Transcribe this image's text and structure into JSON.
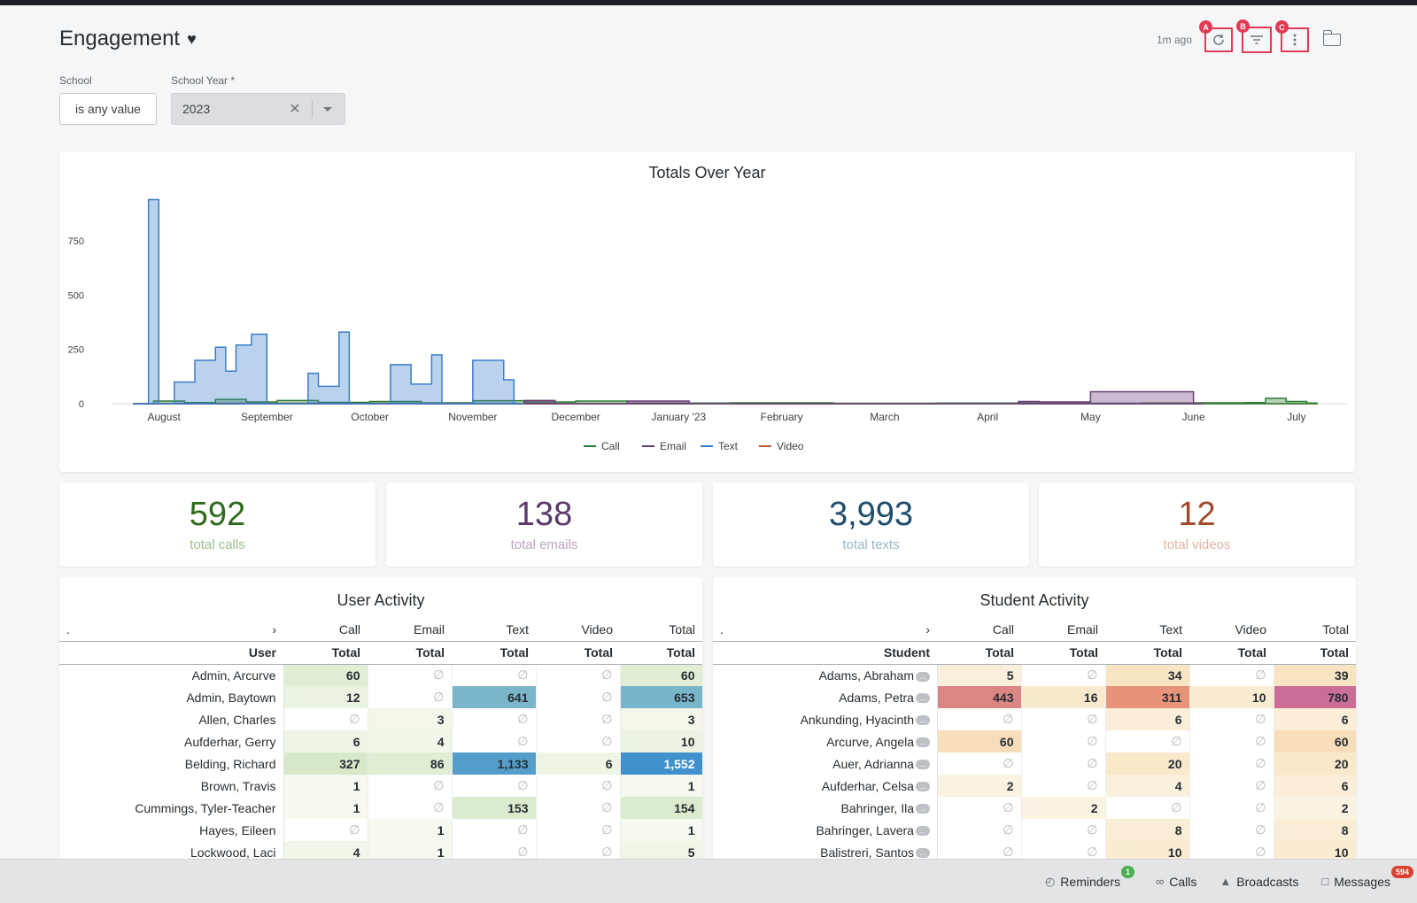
{
  "page": {
    "title": "Engagement",
    "updated": "1m ago",
    "marker_labels": [
      "A",
      "B",
      "C"
    ]
  },
  "filters": {
    "school_label": "School",
    "school_value": "is any value",
    "year_label": "School Year *",
    "year_value": "2023"
  },
  "chart_data": {
    "type": "area",
    "title": "Totals Over Year",
    "x_ticks": [
      "August",
      "September",
      "October",
      "November",
      "December",
      "January '23",
      "February",
      "March",
      "April",
      "May",
      "June",
      "July"
    ],
    "y_ticks": [
      "0",
      "250",
      "500",
      "750"
    ],
    "ylim": [
      0,
      950
    ],
    "legend": "bottom",
    "series": [
      {
        "name": "Call",
        "color": "#2e7d32",
        "values": [
          [
            0.2,
            0
          ],
          [
            0.4,
            12
          ],
          [
            0.7,
            5
          ],
          [
            1.0,
            20
          ],
          [
            1.3,
            8
          ],
          [
            1.6,
            15
          ],
          [
            2.0,
            6
          ],
          [
            2.5,
            10
          ],
          [
            3.0,
            4
          ],
          [
            3.5,
            14
          ],
          [
            4.0,
            8
          ],
          [
            4.5,
            12
          ],
          [
            5.0,
            3
          ],
          [
            6.0,
            4
          ],
          [
            7.0,
            2
          ],
          [
            8.0,
            3
          ],
          [
            9.0,
            2
          ],
          [
            10.0,
            3
          ],
          [
            10.5,
            4
          ],
          [
            11.0,
            5
          ],
          [
            11.2,
            25
          ],
          [
            11.4,
            10
          ],
          [
            11.6,
            3
          ]
        ]
      },
      {
        "name": "Email",
        "color": "#6b3a7a",
        "values": [
          [
            0.2,
            0
          ],
          [
            4.0,
            15
          ],
          [
            4.3,
            0
          ],
          [
            5.0,
            12
          ],
          [
            5.6,
            0
          ],
          [
            8.8,
            10
          ],
          [
            9.0,
            8
          ],
          [
            9.5,
            55
          ],
          [
            10.3,
            55
          ],
          [
            10.5,
            0
          ]
        ]
      },
      {
        "name": "Text",
        "color": "#3a7dc9",
        "values": [
          [
            0.2,
            0
          ],
          [
            0.35,
            940
          ],
          [
            0.45,
            0
          ],
          [
            0.6,
            100
          ],
          [
            0.8,
            200
          ],
          [
            1.0,
            260
          ],
          [
            1.1,
            150
          ],
          [
            1.2,
            270
          ],
          [
            1.35,
            320
          ],
          [
            1.5,
            0
          ],
          [
            1.9,
            140
          ],
          [
            2.0,
            80
          ],
          [
            2.2,
            330
          ],
          [
            2.3,
            0
          ],
          [
            2.7,
            180
          ],
          [
            2.9,
            90
          ],
          [
            3.1,
            225
          ],
          [
            3.2,
            0
          ],
          [
            3.5,
            200
          ],
          [
            3.8,
            110
          ],
          [
            3.9,
            0
          ]
        ]
      },
      {
        "name": "Video",
        "color": "#b85c3a",
        "values": [
          [
            0.2,
            0
          ],
          [
            1.0,
            2
          ],
          [
            3.0,
            1
          ],
          [
            5.0,
            0
          ],
          [
            11.6,
            0
          ]
        ]
      }
    ]
  },
  "kpis": [
    {
      "value": "592",
      "label": "total calls",
      "color": "#2f6b1d",
      "label_color": "#9cc08d"
    },
    {
      "value": "138",
      "label": "total emails",
      "color": "#5b3a6b",
      "label_color": "#b9a3c4"
    },
    {
      "value": "3,993",
      "label": "total texts",
      "color": "#1f4d6b",
      "label_color": "#98b5c7"
    },
    {
      "value": "12",
      "label": "total videos",
      "color": "#a04a2c",
      "label_color": "#dfb3a2"
    }
  ],
  "user_table": {
    "title": "User Activity",
    "dot": ".",
    "group_headers": [
      "Call",
      "Email",
      "Text",
      "Video",
      "Total"
    ],
    "name_header": "User",
    "sub_header": "Total",
    "rows": [
      {
        "name": "Admin, Arcurve",
        "call": "60",
        "email": "∅",
        "text": "∅",
        "video": "∅",
        "total": "60"
      },
      {
        "name": "Admin, Baytown",
        "call": "12",
        "email": "∅",
        "text": "641",
        "video": "∅",
        "total": "653"
      },
      {
        "name": "Allen, Charles",
        "call": "∅",
        "email": "3",
        "text": "∅",
        "video": "∅",
        "total": "3"
      },
      {
        "name": "Aufderhar, Gerry",
        "call": "6",
        "email": "4",
        "text": "∅",
        "video": "∅",
        "total": "10"
      },
      {
        "name": "Belding, Richard",
        "call": "327",
        "email": "86",
        "text": "1,133",
        "video": "6",
        "total": "1,552"
      },
      {
        "name": "Brown, Travis",
        "call": "1",
        "email": "∅",
        "text": "∅",
        "video": "∅",
        "total": "1"
      },
      {
        "name": "Cummings, Tyler-Teacher",
        "call": "1",
        "email": "∅",
        "text": "153",
        "video": "∅",
        "total": "154"
      },
      {
        "name": "Hayes, Eileen",
        "call": "∅",
        "email": "1",
        "text": "∅",
        "video": "∅",
        "total": "1"
      },
      {
        "name": "Lockwood, Laci",
        "call": "4",
        "email": "1",
        "text": "∅",
        "video": "∅",
        "total": "5"
      }
    ]
  },
  "student_table": {
    "title": "Student Activity",
    "dot": ".",
    "group_headers": [
      "Call",
      "Email",
      "Text",
      "Video",
      "Total"
    ],
    "name_header": "Student",
    "sub_header": "Total",
    "more_label": "...",
    "rows": [
      {
        "name": "Adams, Abraham",
        "call": "5",
        "email": "∅",
        "text": "34",
        "video": "∅",
        "total": "39"
      },
      {
        "name": "Adams, Petra",
        "call": "443",
        "email": "16",
        "text": "311",
        "video": "10",
        "total": "780"
      },
      {
        "name": "Ankunding, Hyacinth",
        "call": "∅",
        "email": "∅",
        "text": "6",
        "video": "∅",
        "total": "6"
      },
      {
        "name": "Arcurve, Angela",
        "call": "60",
        "email": "∅",
        "text": "∅",
        "video": "∅",
        "total": "60"
      },
      {
        "name": "Auer, Adrianna",
        "call": "∅",
        "email": "∅",
        "text": "20",
        "video": "∅",
        "total": "20"
      },
      {
        "name": "Aufderhar, Celsa",
        "call": "2",
        "email": "∅",
        "text": "4",
        "video": "∅",
        "total": "6"
      },
      {
        "name": "Bahringer, Ila",
        "call": "∅",
        "email": "2",
        "text": "∅",
        "video": "∅",
        "total": "2"
      },
      {
        "name": "Bahringer, Lavera",
        "call": "∅",
        "email": "∅",
        "text": "8",
        "video": "∅",
        "total": "8"
      },
      {
        "name": "Balistreri, Santos",
        "call": "∅",
        "email": "∅",
        "text": "10",
        "video": "∅",
        "total": "10"
      }
    ]
  },
  "footer": {
    "reminders": "Reminders",
    "reminders_count": "1",
    "calls": "Calls",
    "broadcasts": "Broadcasts",
    "messages": "Messages",
    "messages_count": "594"
  }
}
